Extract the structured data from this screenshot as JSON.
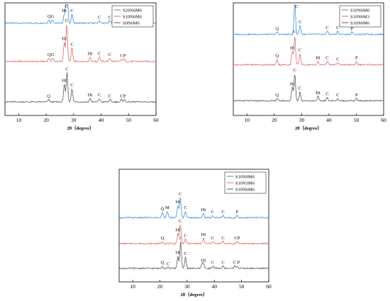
{
  "chart_data": [
    {
      "type": "line",
      "xlabel": "2θ（degree）",
      "ylabel": "",
      "xlim": [
        5,
        60
      ],
      "xticks": [
        10,
        20,
        30,
        40,
        50,
        60
      ],
      "grid": false,
      "legend_position": "top-right",
      "series": [
        {
          "name": "S20N6M6",
          "color": "#3c8fde",
          "baseline": 0.82,
          "peaks": [
            [
              21,
              0.03
            ],
            [
              22.3,
              0.03
            ],
            [
              26.6,
              0.08
            ],
            [
              27.5,
              0.82
            ],
            [
              29.4,
              0.08
            ],
            [
              39.4,
              0.02
            ],
            [
              43.2,
              0.02
            ],
            [
              48.4,
              0.02
            ]
          ],
          "labels": [
            {
              "x": 21.7,
              "text": "QG"
            },
            {
              "x": 26.6,
              "text": "Ht"
            },
            {
              "x": 27.5,
              "text": "C"
            },
            {
              "x": 29.4,
              "text": "C"
            },
            {
              "x": 39.4,
              "text": "C"
            },
            {
              "x": 43.2,
              "text": "C"
            },
            {
              "x": 48.4,
              "text": "P"
            }
          ]
        },
        {
          "name": "S10N6M6",
          "color": "#e06a6a",
          "baseline": 0.48,
          "peaks": [
            [
              21,
              0.03
            ],
            [
              22.3,
              0.03
            ],
            [
              26.6,
              0.17
            ],
            [
              27.5,
              0.33
            ],
            [
              29.4,
              0.12
            ],
            [
              36,
              0.04
            ],
            [
              39.4,
              0.04
            ],
            [
              43.2,
              0.03
            ],
            [
              47.5,
              0.02
            ],
            [
              48.4,
              0.02
            ]
          ],
          "labels": [
            {
              "x": 21.7,
              "text": "QG"
            },
            {
              "x": 26.6,
              "text": "Ht"
            },
            {
              "x": 27.5,
              "text": "C"
            },
            {
              "x": 29.4,
              "text": "C"
            },
            {
              "x": 36,
              "text": "Ht"
            },
            {
              "x": 39.4,
              "text": "C"
            },
            {
              "x": 43.2,
              "text": "C"
            },
            {
              "x": 48,
              "text": "CP"
            }
          ]
        },
        {
          "name": "S0N6M6",
          "color": "#595959",
          "baseline": 0.12,
          "peaks": [
            [
              20.9,
              0.02
            ],
            [
              26.6,
              0.16
            ],
            [
              27.6,
              0.26
            ],
            [
              29.4,
              0.12
            ],
            [
              36,
              0.03
            ],
            [
              39.4,
              0.03
            ],
            [
              43.2,
              0.02
            ],
            [
              47.5,
              0.02
            ],
            [
              48.4,
              0.02
            ]
          ],
          "labels": [
            {
              "x": 20.9,
              "text": "Q"
            },
            {
              "x": 26.6,
              "text": "Ht"
            },
            {
              "x": 27.6,
              "text": "C"
            },
            {
              "x": 29.4,
              "text": "C"
            },
            {
              "x": 36,
              "text": "Ht"
            },
            {
              "x": 39.4,
              "text": "C"
            },
            {
              "x": 43.2,
              "text": "C"
            },
            {
              "x": 48,
              "text": "CP"
            }
          ]
        }
      ]
    },
    {
      "type": "line",
      "xlabel": "2θ（degree）",
      "ylabel": "",
      "xlim": [
        5,
        60
      ],
      "xticks": [
        10,
        20,
        30,
        40,
        50,
        60
      ],
      "grid": false,
      "legend_position": "top-right",
      "series": [
        {
          "name": "S10N6M0",
          "color": "#3c8fde",
          "baseline": 0.72,
          "peaks": [
            [
              21,
              0.02
            ],
            [
              27.5,
              0.29
            ],
            [
              29.4,
              0.08
            ],
            [
              39.4,
              0.03
            ],
            [
              43.2,
              0.03
            ],
            [
              48.4,
              0.02
            ]
          ],
          "labels": [
            {
              "x": 21,
              "text": "Q"
            },
            {
              "x": 28.2,
              "text": "C"
            },
            {
              "x": 29.5,
              "text": "C"
            },
            {
              "x": 39.4,
              "text": "C"
            },
            {
              "x": 43.2,
              "text": "C"
            },
            {
              "x": 48.4,
              "text": "P"
            }
          ]
        },
        {
          "name": "S10N6M3",
          "color": "#e06a6a",
          "baseline": 0.45,
          "peaks": [
            [
              21,
              0.05
            ],
            [
              26.6,
              0.12
            ],
            [
              27.5,
              0.26
            ],
            [
              29.4,
              0.1
            ],
            [
              36,
              0.03
            ],
            [
              39.4,
              0.03
            ],
            [
              43.2,
              0.02
            ],
            [
              50.1,
              0.03
            ]
          ],
          "labels": [
            {
              "x": 21,
              "text": "Q"
            },
            {
              "x": 26.6,
              "text": "Ht"
            },
            {
              "x": 27.5,
              "text": "C"
            },
            {
              "x": 29.4,
              "text": "C"
            },
            {
              "x": 36,
              "text": "Ht"
            },
            {
              "x": 39.4,
              "text": "C"
            },
            {
              "x": 43.2,
              "text": "C"
            },
            {
              "x": 50.1,
              "text": "P"
            }
          ]
        },
        {
          "name": "S10N6M6",
          "color": "#595959",
          "baseline": 0.13,
          "peaks": [
            [
              21,
              0.02
            ],
            [
              26.6,
              0.12
            ],
            [
              27.5,
              0.24
            ],
            [
              29.4,
              0.08
            ],
            [
              36,
              0.04
            ],
            [
              39.4,
              0.03
            ],
            [
              43.2,
              0.02
            ],
            [
              50.1,
              0.02
            ]
          ],
          "labels": [
            {
              "x": 21,
              "text": "Q"
            },
            {
              "x": 26.6,
              "text": "Ht"
            },
            {
              "x": 27.5,
              "text": "C"
            },
            {
              "x": 29.4,
              "text": "C"
            },
            {
              "x": 36,
              "text": "Ht"
            },
            {
              "x": 39.4,
              "text": "C"
            },
            {
              "x": 43.2,
              "text": "C"
            },
            {
              "x": 50.1,
              "text": "P"
            }
          ]
        }
      ]
    },
    {
      "type": "line",
      "xlabel": "2θ（degree）",
      "ylabel": "",
      "xlim": [
        5,
        60
      ],
      "xticks": [
        10,
        20,
        30,
        40,
        50,
        60
      ],
      "grid": false,
      "legend_position": "top-right",
      "series": [
        {
          "name": "S10N0M6",
          "color": "#3c8fde",
          "baseline": 0.57,
          "peaks": [
            [
              20.9,
              0.05
            ],
            [
              22.7,
              0.06
            ],
            [
              26.6,
              0.11
            ],
            [
              27.5,
              0.18
            ],
            [
              29.4,
              0.06
            ],
            [
              36,
              0.04
            ],
            [
              39.4,
              0.02
            ],
            [
              43.2,
              0.02
            ],
            [
              48.4,
              0.02
            ]
          ],
          "labels": [
            {
              "x": 20.9,
              "text": "Q"
            },
            {
              "x": 22.7,
              "text": "M"
            },
            {
              "x": 26.6,
              "text": "Ht"
            },
            {
              "x": 27.5,
              "text": "C"
            },
            {
              "x": 29.4,
              "text": "C"
            },
            {
              "x": 36,
              "text": "Ht"
            },
            {
              "x": 39.4,
              "text": "C"
            },
            {
              "x": 43.2,
              "text": "C"
            },
            {
              "x": 48.4,
              "text": "P"
            }
          ]
        },
        {
          "name": "S10N3M6",
          "color": "#e06a6a",
          "baseline": 0.34,
          "peaks": [
            [
              20.9,
              0.02
            ],
            [
              26.6,
              0.09
            ],
            [
              27.5,
              0.17
            ],
            [
              29.4,
              0.04
            ],
            [
              36,
              0.05
            ],
            [
              39.4,
              0.02
            ],
            [
              43.2,
              0.02
            ],
            [
              48.4,
              0.02
            ]
          ],
          "labels": [
            {
              "x": 20.9,
              "text": "Q"
            },
            {
              "x": 26.6,
              "text": "Ht"
            },
            {
              "x": 27.5,
              "text": "C"
            },
            {
              "x": 29.4,
              "text": "C"
            },
            {
              "x": 36,
              "text": "Ht"
            },
            {
              "x": 39.4,
              "text": "C"
            },
            {
              "x": 43.2,
              "text": "C"
            },
            {
              "x": 48.4,
              "text": "CP"
            }
          ]
        },
        {
          "name": "S10N6M6",
          "color": "#595959",
          "baseline": 0.12,
          "peaks": [
            [
              20.9,
              0.02
            ],
            [
              23,
              0.01
            ],
            [
              26.6,
              0.11
            ],
            [
              27.6,
              0.24
            ],
            [
              29.4,
              0.1
            ],
            [
              35.5,
              0.04
            ],
            [
              36,
              0.04
            ],
            [
              39.4,
              0.02
            ],
            [
              43.2,
              0.02
            ],
            [
              47.5,
              0.02
            ],
            [
              48.4,
              0.02
            ]
          ],
          "labels": [
            {
              "x": 20.9,
              "text": "Q"
            },
            {
              "x": 23,
              "text": "C"
            },
            {
              "x": 26.6,
              "text": "Ht"
            },
            {
              "x": 27.6,
              "text": "C"
            },
            {
              "x": 29.4,
              "text": "C"
            },
            {
              "x": 36,
              "text": "Ht"
            },
            {
              "x": 39.4,
              "text": "C"
            },
            {
              "x": 43.2,
              "text": "C"
            },
            {
              "x": 47.5,
              "text": "C"
            },
            {
              "x": 48.9,
              "text": "P"
            }
          ]
        }
      ]
    }
  ]
}
